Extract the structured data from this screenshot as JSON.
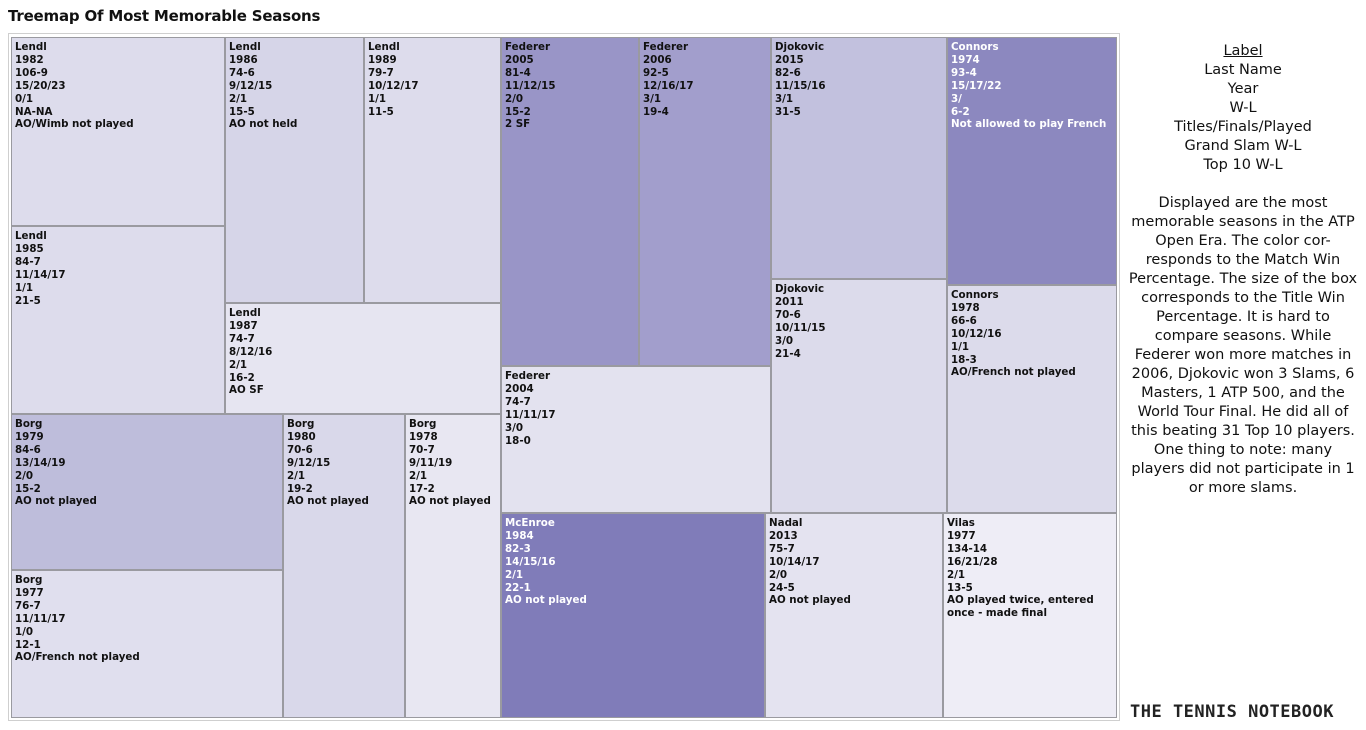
{
  "title": "Treemap Of Most Memorable Seasons",
  "legend": {
    "header": "Label",
    "lines": [
      "Last Name",
      "Year",
      "W-L",
      "Titles/Finals/Played",
      "Grand Slam W-L",
      "Top 10 W-L"
    ]
  },
  "description": "Displayed are the most memorable seasons in the ATP Open Era. The color cor- responds to the Match Win Percentage. The size of the box corresponds to the Title Win Percentage. It is hard to compare seasons. While Federer won more matches in 2006, Djokovic won 3 Slams, 6 Masters, 1 ATP 500, and the World Tour Final. He did all of this beating 31 Top 10 players.  One thing to note: many players did not participate in 1 or more slams.",
  "brand": "THE TENNIS NOTEBOOK",
  "colors": {
    "lowest": "#eeedf6",
    "highest": "#7f7bb8",
    "border": "#9a9aa0"
  },
  "chart_data": {
    "type": "treemap",
    "size_measure": "Title Win Percentage",
    "color_measure": "Match Win Percentage",
    "seasons": [
      {
        "name": "Lendl",
        "year": "1982",
        "wl": "106-9",
        "titles": "15/20/23",
        "gs": "0/1",
        "top10": "NA-NA",
        "note": "AO/Wimb not played",
        "color": "#dddcec"
      },
      {
        "name": "Lendl",
        "year": "1985",
        "wl": "84-7",
        "titles": "11/14/17",
        "gs": "1/1",
        "top10": "21-5",
        "note": "",
        "color": "#dddcec"
      },
      {
        "name": "Lendl",
        "year": "1986",
        "wl": "74-6",
        "titles": "9/12/15",
        "gs": "2/1",
        "top10": "15-5",
        "note": "AO not held",
        "color": "#d6d5e8"
      },
      {
        "name": "Lendl",
        "year": "1989",
        "wl": "79-7",
        "titles": "10/12/17",
        "gs": "1/1",
        "top10": "11-5",
        "note": "",
        "color": "#dddcec"
      },
      {
        "name": "Lendl",
        "year": "1987",
        "wl": "74-7",
        "titles": "8/12/16",
        "gs": "2/1",
        "top10": "16-2",
        "note": "AO SF",
        "color": "#e6e5f1"
      },
      {
        "name": "Federer",
        "year": "2005",
        "wl": "81-4",
        "titles": "11/12/15",
        "gs": "2/0",
        "top10": "15-2",
        "note": "2 SF",
        "color": "#9995c7"
      },
      {
        "name": "Federer",
        "year": "2006",
        "wl": "92-5",
        "titles": "12/16/17",
        "gs": "3/1",
        "top10": "19-4",
        "note": "",
        "color": "#a29ecc"
      },
      {
        "name": "Federer",
        "year": "2004",
        "wl": "74-7",
        "titles": "11/11/17",
        "gs": "3/0",
        "top10": "18-0",
        "note": "",
        "color": "#e3e2ef"
      },
      {
        "name": "Djokovic",
        "year": "2015",
        "wl": "82-6",
        "titles": "11/15/16",
        "gs": "3/1",
        "top10": "31-5",
        "note": "",
        "color": "#c2c1de"
      },
      {
        "name": "Djokovic",
        "year": "2011",
        "wl": "70-6",
        "titles": "10/11/15",
        "gs": "3/0",
        "top10": "21-4",
        "note": "",
        "color": "#dcdbeb"
      },
      {
        "name": "Connors",
        "year": "1974",
        "wl": "93-4",
        "titles": "15/17/22",
        "gs": "3/",
        "top10": "6-2",
        "note": "Not allowed to play French",
        "color": "#8c88bf"
      },
      {
        "name": "Connors",
        "year": "1978",
        "wl": "66-6",
        "titles": "10/12/16",
        "gs": "1/1",
        "top10": "18-3",
        "note": "AO/French not played",
        "color": "#dcdbeb"
      },
      {
        "name": "Borg",
        "year": "1979",
        "wl": "84-6",
        "titles": "13/14/19",
        "gs": "2/0",
        "top10": "15-2",
        "note": "AO not played",
        "color": "#bebddb"
      },
      {
        "name": "Borg",
        "year": "1977",
        "wl": "76-7",
        "titles": "11/11/17",
        "gs": "1/0",
        "top10": "12-1",
        "note": "AO/French not played",
        "color": "#e0dfee"
      },
      {
        "name": "Borg",
        "year": "1980",
        "wl": "70-6",
        "titles": "9/12/15",
        "gs": "2/1",
        "top10": "19-2",
        "note": "AO not played",
        "color": "#d9d8ea"
      },
      {
        "name": "Borg",
        "year": "1978",
        "wl": "70-7",
        "titles": "9/11/19",
        "gs": "2/1",
        "top10": "17-2",
        "note": "AO not played",
        "color": "#e8e7f2"
      },
      {
        "name": "McEnroe",
        "year": "1984",
        "wl": "82-3",
        "titles": "14/15/16",
        "gs": "2/1",
        "top10": "22-1",
        "note": "AO not played",
        "color": "#807cb9"
      },
      {
        "name": "Nadal",
        "year": "2013",
        "wl": "75-7",
        "titles": "10/14/17",
        "gs": "2/0",
        "top10": "24-5",
        "note": "AO not played",
        "color": "#e4e3f0"
      },
      {
        "name": "Vilas",
        "year": "1977",
        "wl": "134-14",
        "titles": "16/21/28",
        "gs": "2/1",
        "top10": "13-5",
        "note": "AO played twice, entered once - made final",
        "color": "#eeedf6"
      }
    ]
  }
}
